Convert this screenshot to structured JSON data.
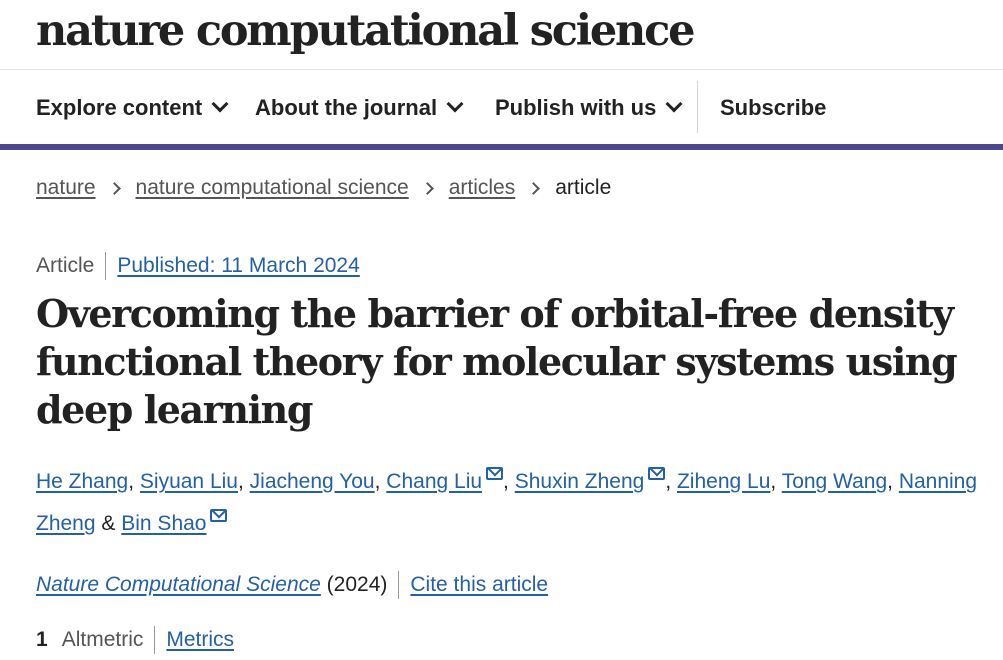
{
  "site": {
    "title": "nature computational science"
  },
  "nav": {
    "items": [
      {
        "label": "Explore content"
      },
      {
        "label": "About the journal"
      },
      {
        "label": "Publish with us"
      }
    ],
    "subscribe": "Subscribe"
  },
  "breadcrumb": {
    "items": [
      "nature",
      "nature computational science",
      "articles"
    ],
    "current": "article"
  },
  "article": {
    "type": "Article",
    "published": "Published: 11 March 2024",
    "title": "Overcoming the barrier of orbital-free density functional theory for molecular systems using deep learning",
    "authors": [
      "He Zhang",
      "Siyuan Liu",
      "Jiacheng You",
      "Chang Liu",
      "Shuxin Zheng",
      "Ziheng Lu",
      "Tong Wang",
      "Nanning Zheng",
      "Bin Shao"
    ],
    "author_separator": ", ",
    "author_conjunction": "&",
    "journal": "Nature Computational Science",
    "year": "(2024)",
    "cite": "Cite this article"
  },
  "metrics": {
    "altmetric_count": "1",
    "altmetric_label": "Altmetric",
    "metrics_link": "Metrics"
  },
  "colors": {
    "link": "#2460a6",
    "accent_bar": "#4f4890",
    "text": "#222222"
  },
  "icons": {
    "nav_dropdown": "chevron-down-icon",
    "breadcrumb_separator": "chevron-right-icon",
    "author_contact": "mail-icon"
  }
}
